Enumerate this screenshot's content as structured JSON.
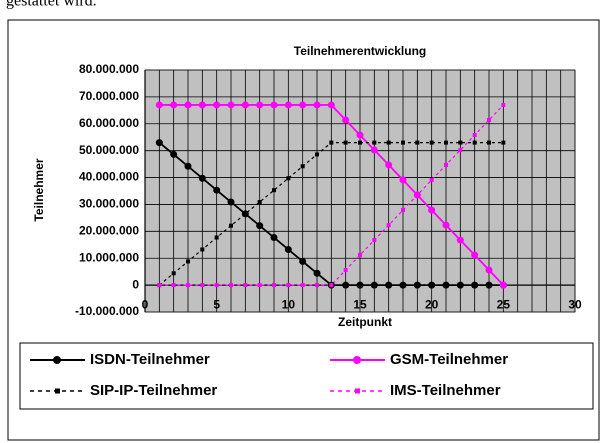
{
  "document_text": "gestattet wird.",
  "chart_data": {
    "type": "line",
    "title": "Teilnehmerentwicklung",
    "x_label": "Zeitpunkt",
    "y_label": "Teilnehmer",
    "x": [
      1,
      2,
      3,
      4,
      5,
      6,
      7,
      8,
      9,
      10,
      11,
      12,
      13,
      14,
      15,
      16,
      17,
      18,
      19,
      20,
      21,
      22,
      23,
      24,
      25
    ],
    "series": [
      {
        "name": "ISDN-Teilnehmer",
        "color": "#000000",
        "dash": false,
        "marker": "circle",
        "values": [
          53000000,
          48600000,
          44200000,
          39750000,
          35300000,
          30900000,
          26500000,
          22100000,
          17700000,
          13250000,
          8800000,
          4400000,
          0,
          0,
          0,
          0,
          0,
          0,
          0,
          0,
          0,
          0,
          0,
          0,
          0
        ]
      },
      {
        "name": "GSM-Teilnehmer",
        "color": "#ff00ff",
        "dash": false,
        "marker": "circle",
        "values": [
          67000000,
          67000000,
          67000000,
          67000000,
          67000000,
          67000000,
          67000000,
          67000000,
          67000000,
          67000000,
          67000000,
          67000000,
          67000000,
          61400000,
          55800000,
          50250000,
          44700000,
          39100000,
          33500000,
          27900000,
          22300000,
          16750000,
          11200000,
          5600000,
          0
        ]
      },
      {
        "name": "SIP-IP-Teilnehmer",
        "color": "#000000",
        "dash": true,
        "marker": "square",
        "values": [
          0,
          4400000,
          8800000,
          13250000,
          17700000,
          22100000,
          26500000,
          30900000,
          35300000,
          39750000,
          44200000,
          48600000,
          53000000,
          53000000,
          53000000,
          53000000,
          53000000,
          53000000,
          53000000,
          53000000,
          53000000,
          53000000,
          53000000,
          53000000,
          53000000
        ]
      },
      {
        "name": "IMS-Teilnehmer",
        "color": "#ff00ff",
        "dash": true,
        "marker": "square",
        "values": [
          0,
          0,
          0,
          0,
          0,
          0,
          0,
          0,
          0,
          0,
          0,
          0,
          0,
          5600000,
          11200000,
          16750000,
          22300000,
          27900000,
          33500000,
          39100000,
          44700000,
          50250000,
          55800000,
          61400000,
          67000000
        ]
      }
    ],
    "xlim": [
      0,
      30
    ],
    "xticks": [
      0,
      5,
      10,
      15,
      20,
      25,
      30
    ],
    "xminorticks": [
      1,
      2,
      3,
      4,
      6,
      7,
      8,
      9,
      11,
      12,
      13,
      14,
      16,
      17,
      18,
      19,
      21,
      22,
      23,
      24,
      26,
      27,
      28,
      29
    ],
    "ylim": [
      -10000000,
      80000000
    ],
    "yticks": [
      {
        "value": -10000000,
        "label": "-10.000.000"
      },
      0,
      {
        "value": 10000000,
        "label": "10.000.000"
      },
      {
        "value": 20000000,
        "label": "20.000.000"
      },
      {
        "value": 30000000,
        "label": "30.000.000"
      },
      {
        "value": 40000000,
        "label": "40.000.000"
      },
      {
        "value": 50000000,
        "label": "50.000.000"
      },
      {
        "value": 60000000,
        "label": "60.000.000"
      },
      {
        "value": 70000000,
        "label": "70.000.000"
      },
      {
        "value": 80000000,
        "label": "80.000.000"
      }
    ],
    "grid": true,
    "plot_background": "#c0c0c0"
  }
}
